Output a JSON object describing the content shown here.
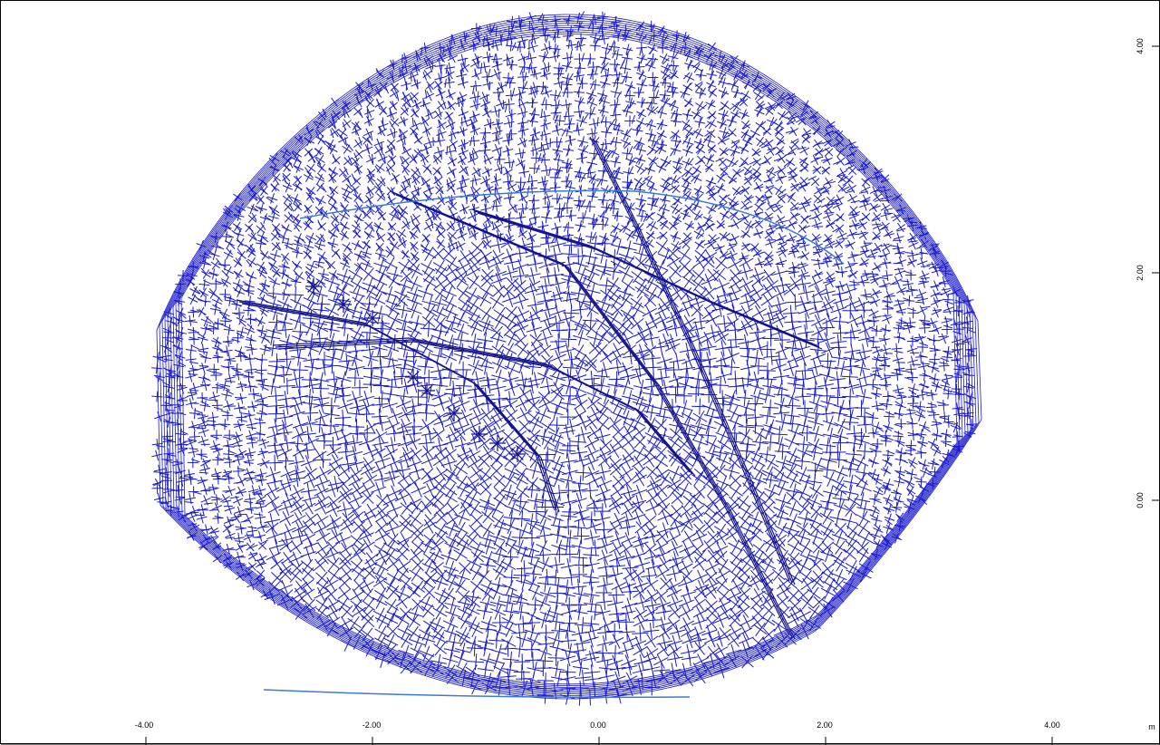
{
  "x_axis": {
    "ticks": [
      "-4.00",
      "-2.00",
      "0.00",
      "2.00",
      "4.00"
    ],
    "unit": "m"
  },
  "y_axis": {
    "ticks": [
      "4.00",
      "2.00",
      "0.00"
    ]
  },
  "colors": {
    "mesh": "#1a1acc",
    "mesh_dark": "#14148a",
    "highlight": "#3a7bd5",
    "axis": "#000000",
    "background": "#ffffff"
  }
}
